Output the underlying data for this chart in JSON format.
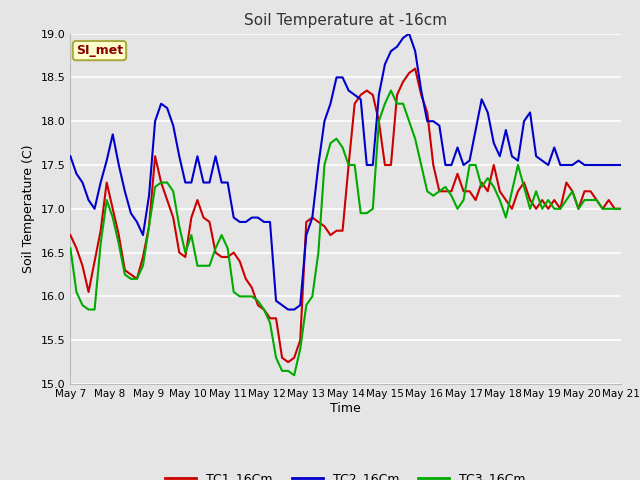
{
  "title": "Soil Temperature at -16cm",
  "xlabel": "Time",
  "ylabel": "Soil Temperature (C)",
  "ylim": [
    15.0,
    19.0
  ],
  "yticks": [
    15.0,
    15.5,
    16.0,
    16.5,
    17.0,
    17.5,
    18.0,
    18.5,
    19.0
  ],
  "xtick_labels": [
    "May 7",
    "May 8",
    "May 9",
    "May 10",
    "May 11",
    "May 12",
    "May 13",
    "May 14",
    "May 15",
    "May 16",
    "May 17",
    "May 18",
    "May 19",
    "May 20",
    "May 21"
  ],
  "background_color": "#e5e5e5",
  "plot_bg_color": "#e5e5e5",
  "grid_color": "#ffffff",
  "tc1_color": "#cc0000",
  "tc2_color": "#0000cc",
  "tc3_color": "#00aa00",
  "line_width": 1.5,
  "annotation_text": "SI_met",
  "annotation_color": "#8b0000",
  "annotation_bg": "#ffffcc",
  "annotation_border": "#aaaa44",
  "tc1_data": [
    16.7,
    16.55,
    16.35,
    16.05,
    16.4,
    16.75,
    17.3,
    17.0,
    16.7,
    16.3,
    16.25,
    16.2,
    16.45,
    16.8,
    17.6,
    17.3,
    17.1,
    16.9,
    16.5,
    16.45,
    16.9,
    17.1,
    16.9,
    16.85,
    16.5,
    16.45,
    16.45,
    16.5,
    16.4,
    16.2,
    16.1,
    15.9,
    15.85,
    15.75,
    15.75,
    15.3,
    15.25,
    15.3,
    15.5,
    16.85,
    16.9,
    16.85,
    16.8,
    16.7,
    16.75,
    16.75,
    17.5,
    18.2,
    18.3,
    18.35,
    18.3,
    18.0,
    17.5,
    17.5,
    18.3,
    18.45,
    18.55,
    18.6,
    18.3,
    18.1,
    17.5,
    17.2,
    17.2,
    17.2,
    17.4,
    17.2,
    17.2,
    17.1,
    17.3,
    17.2,
    17.5,
    17.2,
    17.1,
    17.0,
    17.2,
    17.3,
    17.1,
    17.0,
    17.1,
    17.0,
    17.1,
    17.0,
    17.3,
    17.2,
    17.0,
    17.2,
    17.2,
    17.1,
    17.0,
    17.1,
    17.0,
    17.0
  ],
  "tc2_data": [
    17.6,
    17.4,
    17.3,
    17.1,
    17.0,
    17.3,
    17.55,
    17.85,
    17.5,
    17.2,
    16.95,
    16.85,
    16.7,
    17.15,
    18.0,
    18.2,
    18.15,
    17.95,
    17.6,
    17.3,
    17.3,
    17.6,
    17.3,
    17.3,
    17.6,
    17.3,
    17.3,
    16.9,
    16.85,
    16.85,
    16.9,
    16.9,
    16.85,
    16.85,
    15.95,
    15.9,
    15.85,
    15.85,
    15.9,
    16.7,
    16.9,
    17.5,
    18.0,
    18.2,
    18.5,
    18.5,
    18.35,
    18.3,
    18.25,
    17.5,
    17.5,
    18.3,
    18.65,
    18.8,
    18.85,
    18.95,
    19.0,
    18.8,
    18.35,
    18.0,
    18.0,
    17.95,
    17.5,
    17.5,
    17.7,
    17.5,
    17.55,
    17.9,
    18.25,
    18.1,
    17.75,
    17.6,
    17.9,
    17.6,
    17.55,
    18.0,
    18.1,
    17.6,
    17.55,
    17.5,
    17.7,
    17.5,
    17.5,
    17.5,
    17.55,
    17.5,
    17.5,
    17.5,
    17.5,
    17.5,
    17.5,
    17.5
  ],
  "tc3_data": [
    16.55,
    16.05,
    15.9,
    15.85,
    15.85,
    16.6,
    17.1,
    16.9,
    16.6,
    16.25,
    16.2,
    16.2,
    16.35,
    16.8,
    17.25,
    17.3,
    17.3,
    17.2,
    16.8,
    16.5,
    16.7,
    16.35,
    16.35,
    16.35,
    16.55,
    16.7,
    16.55,
    16.05,
    16.0,
    16.0,
    16.0,
    15.95,
    15.85,
    15.7,
    15.3,
    15.15,
    15.15,
    15.1,
    15.4,
    15.9,
    16.0,
    16.5,
    17.5,
    17.75,
    17.8,
    17.7,
    17.5,
    17.5,
    16.95,
    16.95,
    17.0,
    18.0,
    18.2,
    18.35,
    18.2,
    18.2,
    18.0,
    17.8,
    17.5,
    17.2,
    17.15,
    17.2,
    17.25,
    17.15,
    17.0,
    17.1,
    17.5,
    17.5,
    17.25,
    17.35,
    17.25,
    17.1,
    16.9,
    17.2,
    17.5,
    17.25,
    17.0,
    17.2,
    17.0,
    17.1,
    17.0,
    17.0,
    17.1,
    17.2,
    17.0,
    17.1,
    17.1,
    17.1,
    17.0,
    17.0,
    17.0,
    17.0
  ]
}
